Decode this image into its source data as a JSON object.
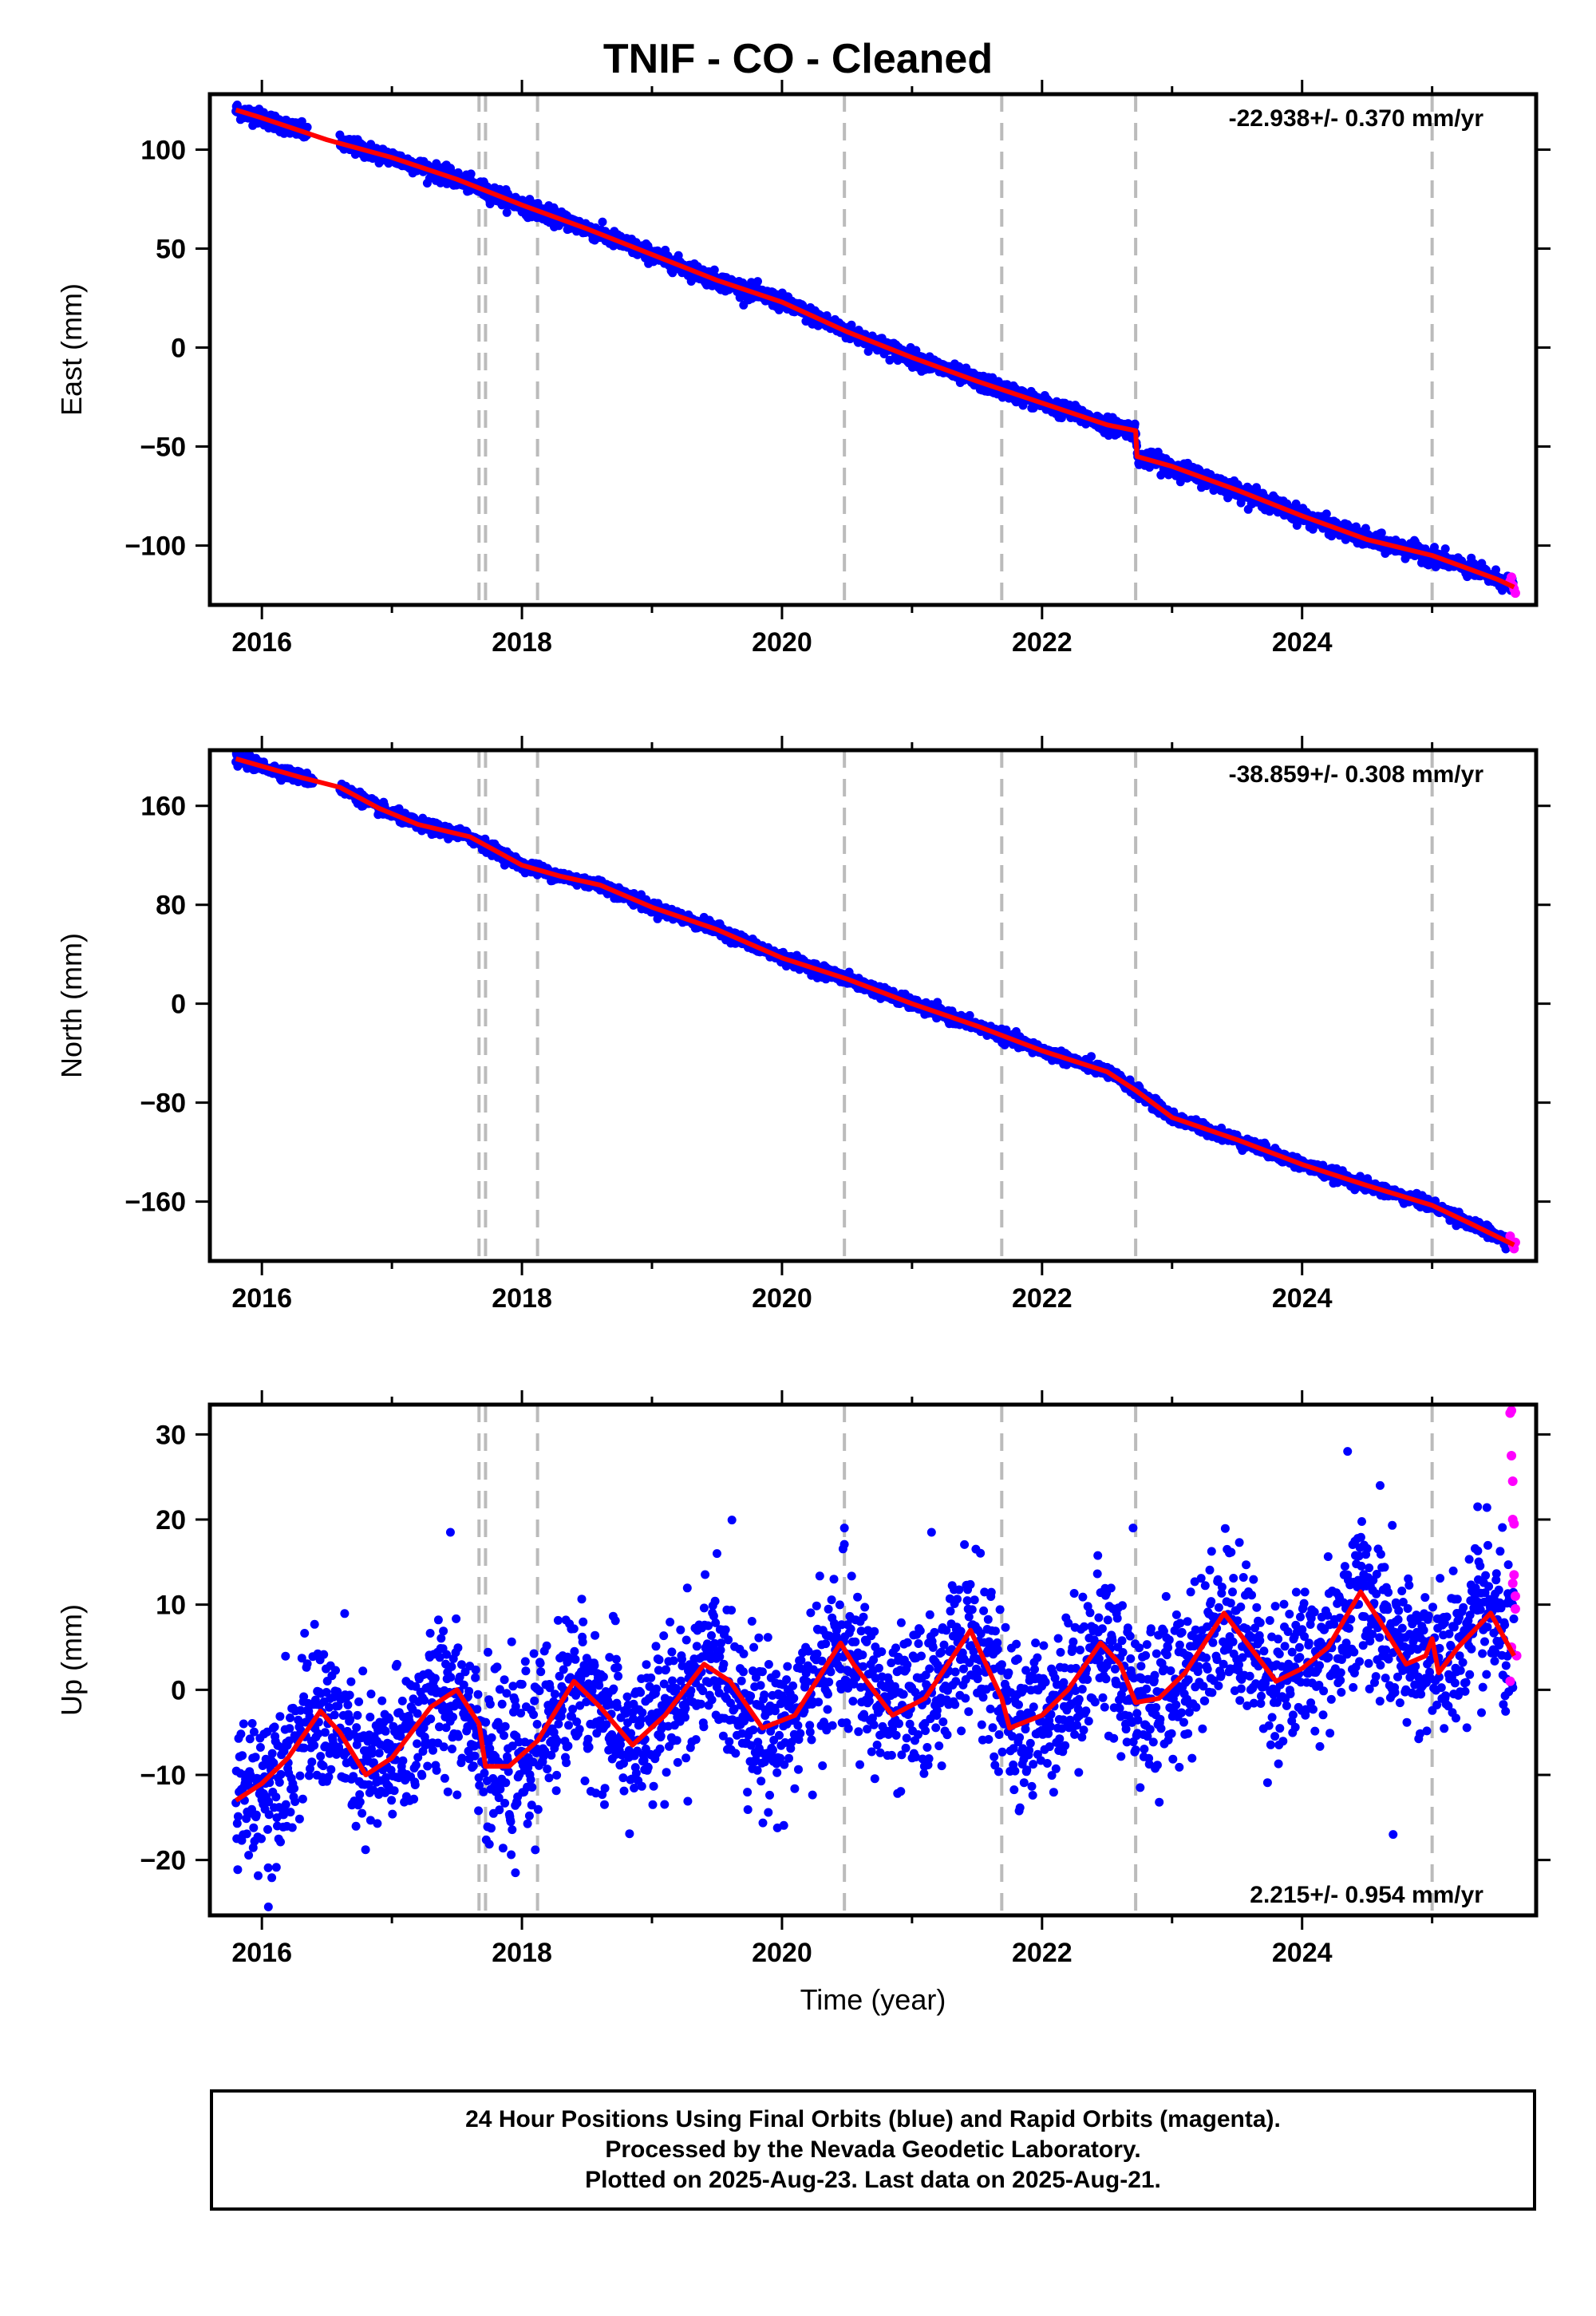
{
  "title": "TNIF  - CO - Cleaned",
  "footer": {
    "line1": "24 Hour Positions Using Final Orbits (blue) and Rapid Orbits (magenta).",
    "line2": "Processed by the Nevada Geodetic Laboratory.",
    "line3": "Plotted on 2025-Aug-23. Last data on 2025-Aug-21."
  },
  "colors": {
    "final": "#0000ff",
    "rapid": "#ff00ff",
    "model": "#ff0000",
    "event_line": "#bbbbbb"
  },
  "chart_data": [
    {
      "type": "scatter",
      "name": "east",
      "ylabel": "East (mm)",
      "xlabel": "",
      "xlim": [
        2015.6,
        2025.8
      ],
      "ylim": [
        -130,
        128
      ],
      "xticks": [
        2016,
        2018,
        2020,
        2022,
        2024
      ],
      "yticks": [
        -100,
        -50,
        0,
        50,
        100
      ],
      "rate_label": "-22.938+/- 0.370 mm/yr",
      "rate_position": "top-right",
      "event_lines": [
        2017.67,
        2017.72,
        2018.12,
        2020.48,
        2021.69,
        2022.72,
        2025.0
      ],
      "model_x": [
        2015.8,
        2016.0,
        2016.5,
        2017.0,
        2017.5,
        2018.0,
        2018.5,
        2019.0,
        2019.5,
        2020.0,
        2020.5,
        2021.0,
        2021.5,
        2022.0,
        2022.5,
        2022.72,
        2022.73,
        2023.0,
        2023.5,
        2024.0,
        2024.5,
        2025.0,
        2025.5,
        2025.63
      ],
      "model_y": [
        120,
        116,
        105,
        96,
        85,
        72,
        60,
        47,
        34,
        23,
        8,
        -5,
        -17,
        -28,
        -39,
        -42,
        -55,
        -60,
        -72,
        -85,
        -97,
        -105,
        -117,
        -121
      ],
      "final_segments": [
        [
          2015.8,
          2016.35
        ],
        [
          2016.6,
          2025.63
        ]
      ],
      "final_scatter_mm": 2.0,
      "rapid_x": [
        2025.6,
        2025.61,
        2025.62,
        2025.63,
        2025.64
      ],
      "rapid_y": [
        -118,
        -116,
        -120,
        -122,
        -124
      ]
    },
    {
      "type": "scatter",
      "name": "north",
      "ylabel": "North (mm)",
      "xlabel": "",
      "xlim": [
        2015.6,
        2025.8
      ],
      "ylim": [
        -208,
        205
      ],
      "xticks": [
        2016,
        2018,
        2020,
        2022,
        2024
      ],
      "yticks": [
        -160,
        -80,
        0,
        80,
        160
      ],
      "rate_label": "-38.859+/- 0.308 mm/yr",
      "rate_position": "top-right",
      "event_lines": [
        2017.67,
        2017.72,
        2018.12,
        2020.48,
        2021.69,
        2022.72,
        2025.0
      ],
      "model_x": [
        2015.8,
        2016.0,
        2016.3,
        2016.6,
        2016.9,
        2017.2,
        2017.6,
        2018.0,
        2018.3,
        2018.6,
        2019.0,
        2019.5,
        2020.0,
        2020.5,
        2021.0,
        2021.5,
        2022.0,
        2022.5,
        2022.72,
        2023.0,
        2023.5,
        2024.0,
        2024.5,
        2025.0,
        2025.3,
        2025.63
      ],
      "model_y": [
        198,
        192,
        183,
        175,
        158,
        145,
        135,
        112,
        103,
        96,
        78,
        60,
        37,
        20,
        0,
        -18,
        -38,
        -55,
        -70,
        -92,
        -110,
        -130,
        -147,
        -163,
        -178,
        -195
      ],
      "final_segments": [
        [
          2015.8,
          2016.4
        ],
        [
          2016.6,
          2025.63
        ]
      ],
      "final_scatter_mm": 2.3,
      "rapid_x": [
        2025.6,
        2025.61,
        2025.62,
        2025.63,
        2025.64
      ],
      "rapid_y": [
        -188,
        -192,
        -195,
        -198,
        -193
      ]
    },
    {
      "type": "scatter",
      "name": "up",
      "ylabel": "Up (mm)",
      "xlabel": "Time (year)",
      "xlim": [
        2015.6,
        2025.8
      ],
      "ylim": [
        -26.5,
        33.5
      ],
      "xticks": [
        2016,
        2018,
        2020,
        2022,
        2024
      ],
      "yticks": [
        -20,
        -10,
        0,
        10,
        20,
        30
      ],
      "rate_label": "2.215+/- 0.954 mm/yr",
      "rate_position": "bottom-right",
      "event_lines": [
        2017.67,
        2017.72,
        2018.12,
        2020.48,
        2021.69,
        2022.72,
        2025.0
      ],
      "model_x": [
        2015.8,
        2016.0,
        2016.2,
        2016.45,
        2016.6,
        2016.8,
        2017.0,
        2017.3,
        2017.5,
        2017.67,
        2017.72,
        2017.9,
        2018.12,
        2018.4,
        2018.6,
        2018.85,
        2019.1,
        2019.4,
        2019.6,
        2019.85,
        2020.1,
        2020.45,
        2020.55,
        2020.85,
        2021.1,
        2021.45,
        2021.6,
        2021.69,
        2021.75,
        2022.0,
        2022.2,
        2022.45,
        2022.6,
        2022.72,
        2022.9,
        2023.1,
        2023.4,
        2023.6,
        2023.8,
        2024.0,
        2024.2,
        2024.45,
        2024.6,
        2024.8,
        2024.95,
        2025.0,
        2025.05,
        2025.2,
        2025.45,
        2025.63
      ],
      "model_y": [
        -13,
        -11,
        -8,
        -2.5,
        -5,
        -10,
        -8,
        -2,
        0,
        -4,
        -9,
        -9,
        -6,
        1,
        -2,
        -6.5,
        -3,
        3,
        1,
        -4.5,
        -3,
        5.5,
        3,
        -3,
        -1,
        7,
        2,
        -1,
        -4.5,
        -3,
        0,
        5.5,
        3,
        -1.5,
        -1,
        2,
        9,
        5,
        1,
        2.5,
        5,
        11.5,
        8,
        3,
        4,
        6,
        2,
        5,
        9,
        4
      ],
      "final_segments": [
        [
          2015.8,
          2025.63
        ]
      ],
      "final_scatter_mm": 4.5,
      "outliers_x": [
        2016.05,
        2017.45,
        2017.95,
        2019.5,
        2020.48,
        2021.15,
        2022.7,
        2024.35,
        2024.6,
        2024.7,
        2025.35
      ],
      "outliers_y": [
        -25.5,
        18.5,
        -21.5,
        16,
        19,
        18.5,
        19,
        28,
        24,
        -17,
        21.5
      ],
      "rapid_x": [
        2025.6,
        2025.61,
        2025.61,
        2025.62,
        2025.62,
        2025.63,
        2025.63,
        2025.64,
        2025.64,
        2025.65,
        2025.6,
        2025.61,
        2025.62
      ],
      "rapid_y": [
        32.5,
        32.8,
        27.5,
        24.5,
        20,
        19.5,
        13.5,
        11,
        9.5,
        4,
        1,
        5,
        12.5
      ]
    }
  ]
}
